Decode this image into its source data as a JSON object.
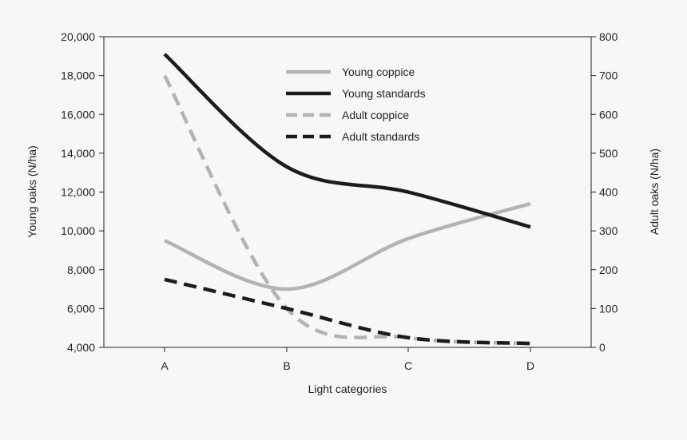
{
  "chart_data": {
    "type": "line",
    "categories": [
      "A",
      "B",
      "C",
      "D"
    ],
    "xlabel": "Light categories",
    "ylabel_left": "Young oaks (N/ha)",
    "ylabel_right": "Adult oaks (N/ha)",
    "ylim_left": [
      4000,
      20000
    ],
    "ylim_right": [
      0,
      800
    ],
    "yticks_left": [
      "4,000",
      "6,000",
      "8,000",
      "10,000",
      "12,000",
      "14,000",
      "16,000",
      "18,000",
      "20,000"
    ],
    "yticks_left_values": [
      4000,
      6000,
      8000,
      10000,
      12000,
      14000,
      16000,
      18000,
      20000
    ],
    "yticks_right": [
      "0",
      "100",
      "200",
      "300",
      "400",
      "500",
      "600",
      "700",
      "800"
    ],
    "yticks_right_values": [
      0,
      100,
      200,
      300,
      400,
      500,
      600,
      700,
      800
    ],
    "grid": false,
    "legend_position": "top-center",
    "series": [
      {
        "name": "Young coppice",
        "axis": "left",
        "values": [
          9500,
          7000,
          9600,
          11400
        ],
        "color": "#b3b3b3",
        "dash": "solid"
      },
      {
        "name": "Young standards",
        "axis": "left",
        "values": [
          19100,
          13300,
          12000,
          10200
        ],
        "color": "#1f1a1b",
        "dash": "solid"
      },
      {
        "name": "Adult coppice",
        "axis": "right",
        "values": [
          700,
          100,
          25,
          10
        ],
        "color": "#b3b3b3",
        "dash": "dashed"
      },
      {
        "name": "Adult standards",
        "axis": "right",
        "values": [
          175,
          100,
          25,
          10
        ],
        "color": "#1f1a1b",
        "dash": "dashed"
      }
    ]
  }
}
